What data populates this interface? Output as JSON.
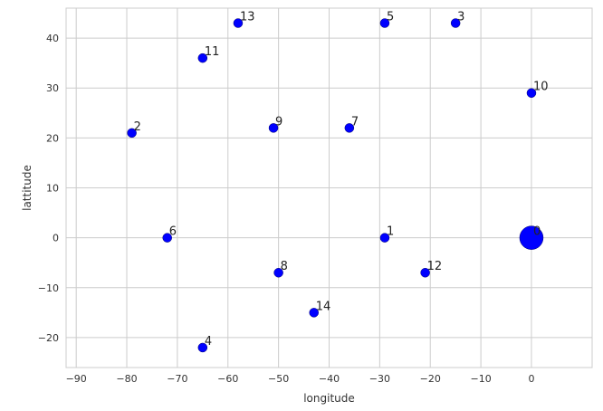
{
  "chart_data": {
    "type": "scatter",
    "title": "",
    "xlabel": "longitude",
    "ylabel": "lattitude",
    "xlim": [
      -92,
      12
    ],
    "ylim": [
      -26,
      46
    ],
    "xticks": [
      -90,
      -80,
      -70,
      -60,
      -50,
      -40,
      -30,
      -20,
      -10,
      0
    ],
    "yticks": [
      -20,
      -10,
      0,
      10,
      20,
      30,
      40
    ],
    "grid": true,
    "point_color": "#0000ff",
    "points": [
      {
        "label": "0",
        "x": 0,
        "y": 0,
        "large": true
      },
      {
        "label": "1",
        "x": -29,
        "y": 0
      },
      {
        "label": "2",
        "x": -79,
        "y": 21
      },
      {
        "label": "3",
        "x": -15,
        "y": 43
      },
      {
        "label": "4",
        "x": -65,
        "y": -22
      },
      {
        "label": "5",
        "x": -29,
        "y": 43
      },
      {
        "label": "6",
        "x": -72,
        "y": 0
      },
      {
        "label": "7",
        "x": -36,
        "y": 22
      },
      {
        "label": "8",
        "x": -50,
        "y": -7
      },
      {
        "label": "9",
        "x": -51,
        "y": 22
      },
      {
        "label": "10",
        "x": 0,
        "y": 29
      },
      {
        "label": "11",
        "x": -65,
        "y": 36
      },
      {
        "label": "12",
        "x": -21,
        "y": -7
      },
      {
        "label": "13",
        "x": -58,
        "y": 43
      },
      {
        "label": "14",
        "x": -43,
        "y": -15
      }
    ]
  }
}
